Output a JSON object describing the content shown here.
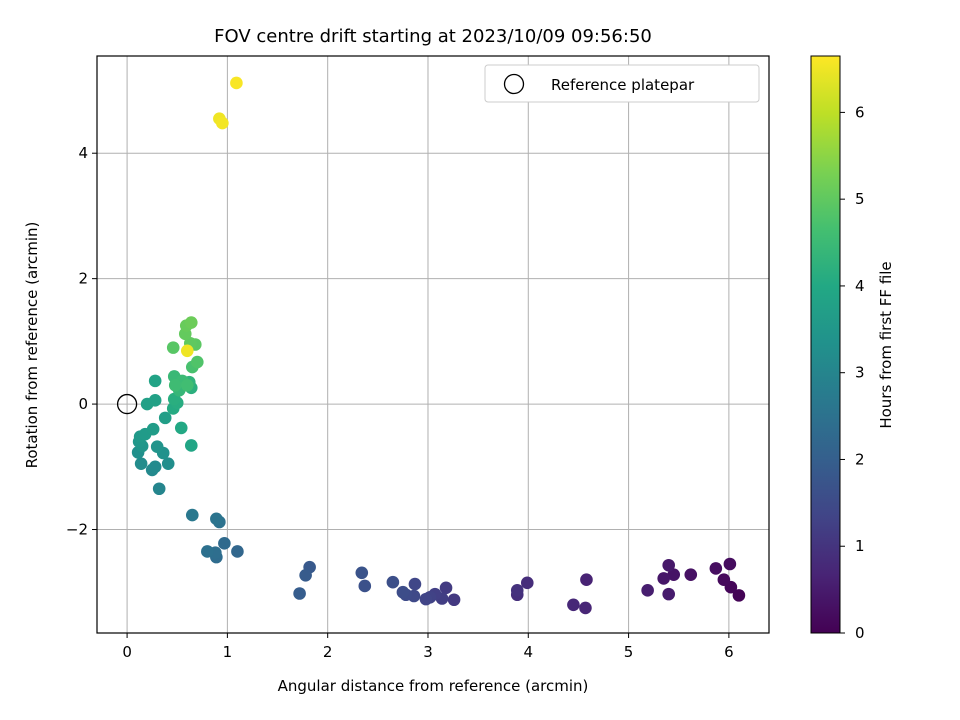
{
  "chart_data": {
    "type": "scatter",
    "title": "FOV centre drift starting at 2023/10/09 09:56:50",
    "xlabel": "Angular distance from reference (arcmin)",
    "ylabel": "Rotation from reference (arcmin)",
    "xlim": [
      -0.3,
      6.4
    ],
    "ylim": [
      -3.65,
      5.55
    ],
    "xticks": [
      0,
      1,
      2,
      3,
      4,
      5,
      6
    ],
    "yticks": [
      -2,
      0,
      2,
      4
    ],
    "ytick_labels": [
      "−2",
      "0",
      "2",
      "4"
    ],
    "grid": true,
    "legend": {
      "position": "top-right",
      "entries": [
        "Reference platepar"
      ]
    },
    "reference_point": {
      "x": 0,
      "y": 0
    },
    "colorbar": {
      "label": "Hours from first FF file",
      "range": [
        0,
        6.65
      ],
      "ticks": [
        0,
        1,
        2,
        3,
        4,
        5,
        6
      ],
      "colormap": "viridis"
    },
    "points": [
      {
        "x": 6.1,
        "y": -3.05,
        "t": 0.05
      },
      {
        "x": 6.02,
        "y": -2.92,
        "t": 0.1
      },
      {
        "x": 5.95,
        "y": -2.8,
        "t": 0.15
      },
      {
        "x": 6.01,
        "y": -2.55,
        "t": 0.2
      },
      {
        "x": 5.87,
        "y": -2.62,
        "t": 0.25
      },
      {
        "x": 5.62,
        "y": -2.72,
        "t": 0.3
      },
      {
        "x": 5.45,
        "y": -2.72,
        "t": 0.35
      },
      {
        "x": 5.35,
        "y": -2.78,
        "t": 0.4
      },
      {
        "x": 5.4,
        "y": -2.57,
        "t": 0.45
      },
      {
        "x": 5.4,
        "y": -3.03,
        "t": 0.5
      },
      {
        "x": 5.19,
        "y": -2.97,
        "t": 0.55
      },
      {
        "x": 4.58,
        "y": -2.8,
        "t": 0.65
      },
      {
        "x": 4.57,
        "y": -3.25,
        "t": 0.7
      },
      {
        "x": 4.45,
        "y": -3.2,
        "t": 0.75
      },
      {
        "x": 3.99,
        "y": -2.85,
        "t": 0.85
      },
      {
        "x": 3.89,
        "y": -3.04,
        "t": 0.9
      },
      {
        "x": 3.89,
        "y": -2.97,
        "t": 0.95
      },
      {
        "x": 3.26,
        "y": -3.12,
        "t": 1.1
      },
      {
        "x": 3.18,
        "y": -2.93,
        "t": 1.15
      },
      {
        "x": 3.14,
        "y": -3.1,
        "t": 1.2
      },
      {
        "x": 3.07,
        "y": -3.03,
        "t": 1.25
      },
      {
        "x": 3.02,
        "y": -3.08,
        "t": 1.3
      },
      {
        "x": 2.98,
        "y": -3.11,
        "t": 1.35
      },
      {
        "x": 2.87,
        "y": -2.87,
        "t": 1.4
      },
      {
        "x": 2.86,
        "y": -3.06,
        "t": 1.45
      },
      {
        "x": 2.78,
        "y": -3.04,
        "t": 1.5
      },
      {
        "x": 2.75,
        "y": -3.0,
        "t": 1.55
      },
      {
        "x": 2.65,
        "y": -2.84,
        "t": 1.6
      },
      {
        "x": 2.37,
        "y": -2.9,
        "t": 1.65
      },
      {
        "x": 2.34,
        "y": -2.69,
        "t": 1.7
      },
      {
        "x": 1.82,
        "y": -2.6,
        "t": 1.85
      },
      {
        "x": 1.78,
        "y": -2.73,
        "t": 1.9
      },
      {
        "x": 1.72,
        "y": -3.02,
        "t": 1.95
      },
      {
        "x": 1.1,
        "y": -2.35,
        "t": 2.2
      },
      {
        "x": 0.97,
        "y": -2.22,
        "t": 2.3
      },
      {
        "x": 0.89,
        "y": -2.44,
        "t": 2.35
      },
      {
        "x": 0.88,
        "y": -2.37,
        "t": 2.4
      },
      {
        "x": 0.8,
        "y": -2.35,
        "t": 2.45
      },
      {
        "x": 0.92,
        "y": -1.88,
        "t": 2.5
      },
      {
        "x": 0.89,
        "y": -1.83,
        "t": 2.55
      },
      {
        "x": 0.65,
        "y": -1.77,
        "t": 2.65
      },
      {
        "x": 0.32,
        "y": -1.35,
        "t": 3.0
      },
      {
        "x": 0.25,
        "y": -1.05,
        "t": 3.1
      },
      {
        "x": 0.28,
        "y": -1.0,
        "t": 3.15
      },
      {
        "x": 0.14,
        "y": -0.95,
        "t": 3.2
      },
      {
        "x": 0.41,
        "y": -0.95,
        "t": 3.25
      },
      {
        "x": 0.11,
        "y": -0.77,
        "t": 3.3
      },
      {
        "x": 0.36,
        "y": -0.78,
        "t": 3.35
      },
      {
        "x": 0.3,
        "y": -0.68,
        "t": 3.4
      },
      {
        "x": 0.15,
        "y": -0.67,
        "t": 3.45
      },
      {
        "x": 0.12,
        "y": -0.6,
        "t": 3.5
      },
      {
        "x": 0.13,
        "y": -0.52,
        "t": 3.55
      },
      {
        "x": 0.18,
        "y": -0.48,
        "t": 3.6
      },
      {
        "x": 0.26,
        "y": -0.4,
        "t": 3.65
      },
      {
        "x": 0.38,
        "y": -0.22,
        "t": 3.7
      },
      {
        "x": 0.2,
        "y": 0.0,
        "t": 3.75
      },
      {
        "x": 0.28,
        "y": 0.06,
        "t": 3.8
      },
      {
        "x": 0.28,
        "y": 0.37,
        "t": 3.85
      },
      {
        "x": 0.64,
        "y": -0.66,
        "t": 3.9
      },
      {
        "x": 0.54,
        "y": -0.38,
        "t": 4.0
      },
      {
        "x": 0.46,
        "y": -0.07,
        "t": 4.05
      },
      {
        "x": 0.5,
        "y": 0.02,
        "t": 4.1
      },
      {
        "x": 0.47,
        "y": 0.08,
        "t": 4.15
      },
      {
        "x": 0.64,
        "y": 0.26,
        "t": 4.2
      },
      {
        "x": 0.62,
        "y": 0.35,
        "t": 4.3
      },
      {
        "x": 0.52,
        "y": 0.22,
        "t": 4.4
      },
      {
        "x": 0.47,
        "y": 0.44,
        "t": 4.45
      },
      {
        "x": 0.55,
        "y": 0.37,
        "t": 4.5
      },
      {
        "x": 0.48,
        "y": 0.3,
        "t": 4.55
      },
      {
        "x": 0.6,
        "y": 0.3,
        "t": 4.6
      },
      {
        "x": 0.65,
        "y": 0.59,
        "t": 4.7
      },
      {
        "x": 0.7,
        "y": 0.67,
        "t": 4.8
      },
      {
        "x": 0.46,
        "y": 0.9,
        "t": 4.9
      },
      {
        "x": 0.68,
        "y": 0.95,
        "t": 4.95
      },
      {
        "x": 0.63,
        "y": 0.97,
        "t": 5.0
      },
      {
        "x": 0.58,
        "y": 1.12,
        "t": 5.05
      },
      {
        "x": 0.59,
        "y": 1.25,
        "t": 5.1
      },
      {
        "x": 0.64,
        "y": 1.3,
        "t": 5.15
      },
      {
        "x": 0.6,
        "y": 0.85,
        "t": 6.5
      },
      {
        "x": 0.92,
        "y": 4.55,
        "t": 6.5
      },
      {
        "x": 0.95,
        "y": 4.48,
        "t": 6.55
      },
      {
        "x": 1.09,
        "y": 5.12,
        "t": 6.6
      }
    ]
  }
}
